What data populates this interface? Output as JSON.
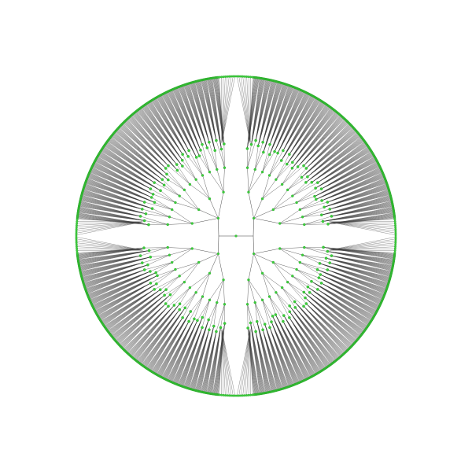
{
  "diagram": {
    "type": "radial-tree",
    "colors": {
      "background": "#ffffff",
      "edge": "#3a3a3a",
      "node": "#3ccf3c",
      "node_outline": "#2aa52a"
    },
    "structure": {
      "branches": 4,
      "levels": 4,
      "leaf_ring": "dense"
    }
  }
}
